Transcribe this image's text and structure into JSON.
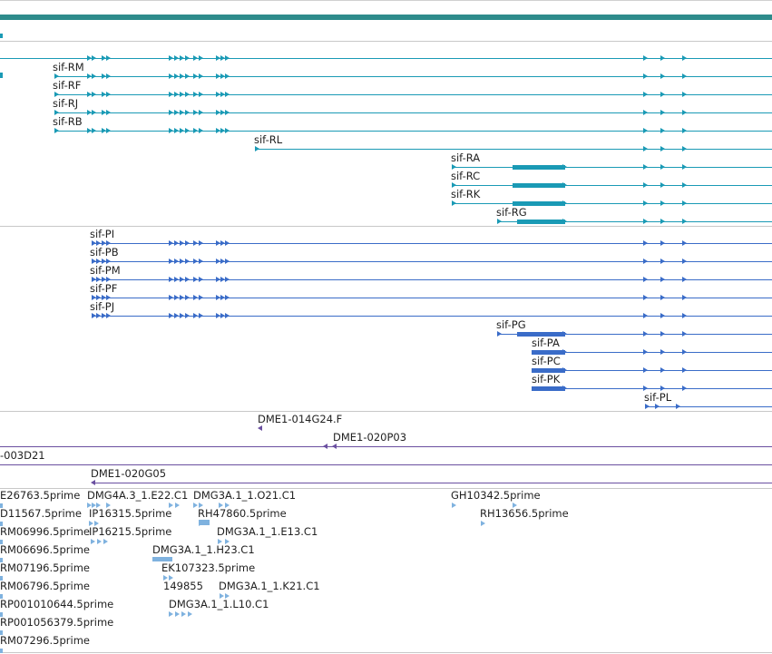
{
  "colors": {
    "top_bar": "#2e8b8b",
    "divider": "#c8c8c8",
    "transcript_r": "#1a9ab5",
    "transcript_p": "#3a6cc8",
    "bac_clone": "#6a4fa0",
    "est": "#7fb2df"
  },
  "transcripts_r": [
    "sif-RM",
    "sif-RF",
    "sif-RJ",
    "sif-RB",
    "sif-RL",
    "sif-RA",
    "sif-RC",
    "sif-RK",
    "sif-RG"
  ],
  "transcripts_p": [
    "sif-PI",
    "sif-PB",
    "sif-PM",
    "sif-PF",
    "sif-PJ",
    "sif-PG",
    "sif-PA",
    "sif-PC",
    "sif-PK",
    "sif-PL"
  ],
  "bac_clones": [
    "DME1-014G24.F",
    "DME1-020P03",
    "-003D21",
    "DME1-020G05"
  ],
  "est_labels": {
    "e1": "E26763.5prime",
    "e2": "DMG4A.3_1.E22.C1",
    "e3": "DMG3A.1_1.O21.C1",
    "e4": "GH10342.5prime",
    "e5": "D11567.5prime",
    "e6": "IP16315.5prime",
    "e7": "RH47860.5prime",
    "e8": "RH13656.5prime",
    "e9": "RM06996.5prime",
    "e10": "IP16215.5prime",
    "e11": "DMG3A.1_1.E13.C1",
    "e12": "RM06696.5prime",
    "e13": "DMG3A.1_1.H23.C1",
    "e14": "RM07196.5prime",
    "e15": "EK107323.5prime",
    "e16": "RM06796.5prime",
    "e17": "149855",
    "e18": "DMG3A.1_1.K21.C1",
    "e19": "RP001010644.5prime",
    "e20": "DMG3A.1_1.L10.C1",
    "e21": "RP001056379.5prime",
    "e22": "RM07296.5prime"
  }
}
